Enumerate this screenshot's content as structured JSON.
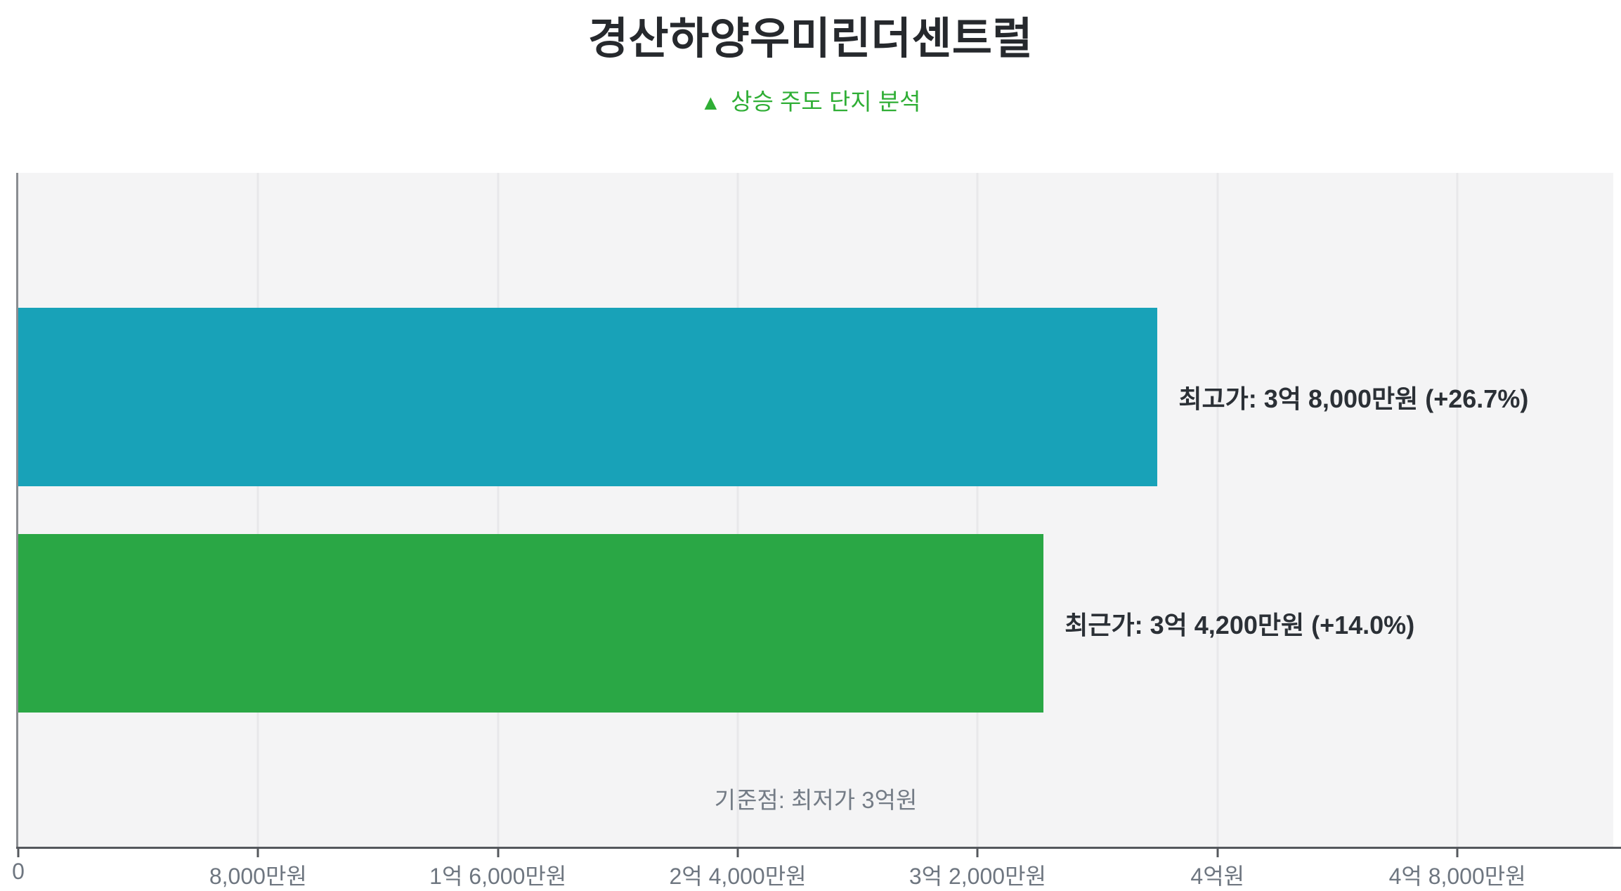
{
  "title": "경산하양우미린더센트럴",
  "subtitle": {
    "icon": "▲",
    "text": "상승 주도 단지 분석"
  },
  "chart_data": {
    "type": "bar",
    "orientation": "horizontal",
    "title": "경산하양우미린더센트럴",
    "subtitle": "▲ 상승 주도 단지 분석",
    "unit": "만원",
    "xlim": [
      0,
      53200
    ],
    "grid": "vertical",
    "x_ticks": [
      {
        "value": 0,
        "label": "0"
      },
      {
        "value": 8000,
        "label": "8,000만원"
      },
      {
        "value": 16000,
        "label": "1억 6,000만원"
      },
      {
        "value": 24000,
        "label": "2억 4,000만원"
      },
      {
        "value": 32000,
        "label": "3억 2,000만원"
      },
      {
        "value": 40000,
        "label": "4억원"
      },
      {
        "value": 48000,
        "label": "4억 8,000만원"
      }
    ],
    "bars": [
      {
        "category": "최고가",
        "value": 38000,
        "label": "최고가: 3억 8,000만원 (+26.7%)",
        "color": "#18a2b8"
      },
      {
        "category": "최근가",
        "value": 34200,
        "label": "최근가: 3억 4,200만원 (+14.0%)",
        "color": "#2aa745"
      }
    ],
    "baseline": {
      "label": "기준점: 최저가 3억원",
      "value": 30000
    }
  },
  "colors": {
    "title": "#26292d",
    "subtitle_green": "#2fae35",
    "bar_label": "#2b3036",
    "tick_label": "#6e7680",
    "annotation": "#747c86",
    "gridline": "#e8e8ea",
    "y_axis_line": "#8a8d91",
    "x_axis_line": "#55585d",
    "plot_background": "#f4f4f5"
  }
}
